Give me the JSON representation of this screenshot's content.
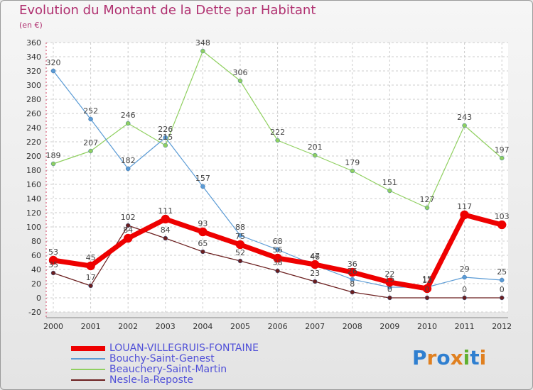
{
  "title": "Evolution du Montant de la Dette par Habitant",
  "subtitle": "(en €)",
  "brand": {
    "text": "Proxiti",
    "letters": [
      "P",
      "r",
      "o",
      "x",
      "i",
      "t",
      "i"
    ],
    "colors": [
      "#2f7fd0",
      "#e08020",
      "#2f7fd0",
      "#e08020",
      "#60b030",
      "#2f7fd0",
      "#e08020"
    ]
  },
  "chart_data": {
    "type": "line",
    "x": [
      "2000",
      "2001",
      "2002",
      "2003",
      "2004",
      "2005",
      "2006",
      "2007",
      "2008",
      "2009",
      "2010",
      "2011",
      "2012"
    ],
    "ylim": [
      -20,
      360
    ],
    "yticks": [
      -20,
      0,
      20,
      40,
      60,
      80,
      100,
      120,
      140,
      160,
      180,
      200,
      220,
      240,
      260,
      280,
      300,
      320,
      340,
      360
    ],
    "grid": true,
    "legend_position": "bottom-left",
    "series": [
      {
        "name": "Nesle-la-Reposte",
        "color": "#6b1e1e",
        "line_width": 1.2,
        "marker_radius": 3,
        "values": [
          35,
          17,
          102,
          84,
          65,
          52,
          38,
          23,
          8,
          0,
          0,
          0,
          0
        ]
      },
      {
        "name": "Beauchery-Saint-Martin",
        "color": "#90d060",
        "line_width": 1.2,
        "marker_radius": 3,
        "values": [
          189,
          207,
          246,
          215,
          348,
          306,
          222,
          201,
          179,
          151,
          127,
          243,
          197
        ]
      },
      {
        "name": "Bouchy-Saint-Genest",
        "color": "#5b9bd5",
        "line_width": 1.2,
        "marker_radius": 3,
        "values": [
          320,
          252,
          182,
          226,
          157,
          88,
          68,
          46,
          26,
          15,
          15,
          29,
          25
        ]
      },
      {
        "name": "LOUAN-VILLEGRUIS-FONTAINE",
        "color": "#ee0000",
        "line_width": 7,
        "marker_radius": 6,
        "values": [
          53,
          45,
          84,
          111,
          93,
          75,
          56,
          47,
          36,
          22,
          13,
          117,
          103
        ]
      }
    ],
    "legend_order": [
      "LOUAN-VILLEGRUIS-FONTAINE",
      "Bouchy-Saint-Genest",
      "Beauchery-Saint-Martin",
      "Nesle-la-Reposte"
    ]
  }
}
